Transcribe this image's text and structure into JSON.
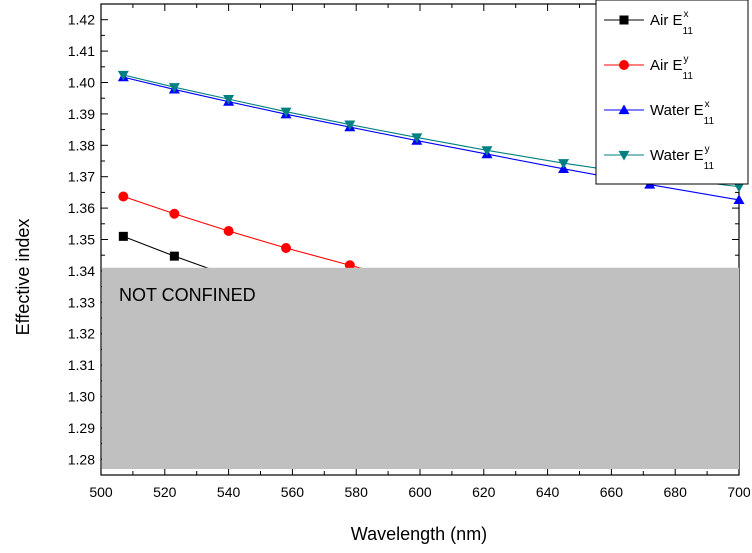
{
  "chart_data": {
    "type": "line",
    "xlabel": "Wavelength (nm)",
    "ylabel": "Effective index",
    "xlim": [
      500,
      700
    ],
    "ylim": [
      1.275,
      1.425
    ],
    "xticks": [
      "500",
      "520",
      "540",
      "560",
      "580",
      "600",
      "620",
      "640",
      "660",
      "680",
      "700"
    ],
    "yticks": [
      "1.28",
      "1.29",
      "1.30",
      "1.31",
      "1.32",
      "1.33",
      "1.34",
      "1.35",
      "1.36",
      "1.37",
      "1.38",
      "1.39",
      "1.40",
      "1.41",
      "1.42"
    ],
    "grid": false,
    "legend_position": "top-right",
    "region": {
      "label": "NOT CONFINED",
      "y_max": 1.341,
      "color": "#c0c0c0"
    },
    "series": [
      {
        "name_main": "Air E",
        "name_sup": "x",
        "name_sub": "11",
        "color": "#000000",
        "marker": "square",
        "x": [
          507,
          523,
          540
        ],
        "y": [
          1.351,
          1.3447,
          1.3385
        ]
      },
      {
        "name_main": "Air E",
        "name_sup": "y",
        "name_sub": "11",
        "color": "#ff0000",
        "marker": "circle",
        "x": [
          507,
          523,
          540,
          558,
          578,
          598
        ],
        "y": [
          1.3637,
          1.3582,
          1.3527,
          1.3473,
          1.3418,
          1.3365
        ]
      },
      {
        "name_main": "Water E",
        "name_sup": "x",
        "name_sub": "11",
        "color": "#0000ff",
        "marker": "triangle-up",
        "x": [
          507,
          523,
          540,
          558,
          578,
          599,
          621,
          645,
          672,
          700
        ],
        "y": [
          1.4017,
          1.3978,
          1.3939,
          1.3899,
          1.3858,
          1.3815,
          1.3772,
          1.3725,
          1.3675,
          1.3626
        ]
      },
      {
        "name_main": "Water E",
        "name_sup": "y",
        "name_sub": "11",
        "color": "#008080",
        "marker": "triangle-down",
        "x": [
          507,
          523,
          540,
          558,
          578,
          599,
          621,
          645,
          672,
          700
        ],
        "y": [
          1.4024,
          1.3985,
          1.3947,
          1.3907,
          1.3866,
          1.3825,
          1.3784,
          1.3743,
          1.3703,
          1.3668
        ]
      }
    ]
  }
}
